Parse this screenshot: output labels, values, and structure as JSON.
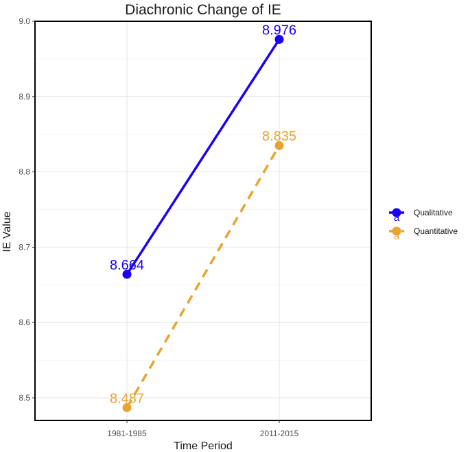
{
  "chart_data": {
    "type": "line",
    "title": "Diachronic Change of IE",
    "xlabel": "Time Period",
    "ylabel": "IE Value",
    "categories": [
      "1981-1985",
      "2011-2015"
    ],
    "yticks": [
      "8.5",
      "8.6",
      "8.7",
      "8.8",
      "8.9",
      "9.0"
    ],
    "ylim": [
      8.47,
      9.0
    ],
    "grid": true,
    "legend_position": "right",
    "series": [
      {
        "name": "Qualitative",
        "values": [
          8.664,
          8.976
        ],
        "labels": [
          "8.664",
          "8.976"
        ],
        "color": "#1a00f5",
        "line_style": "solid"
      },
      {
        "name": "Quantitative",
        "values": [
          8.487,
          8.835
        ],
        "labels": [
          "8.487",
          "8.835"
        ],
        "color": "#e8a330",
        "line_style": "dashed"
      }
    ]
  }
}
